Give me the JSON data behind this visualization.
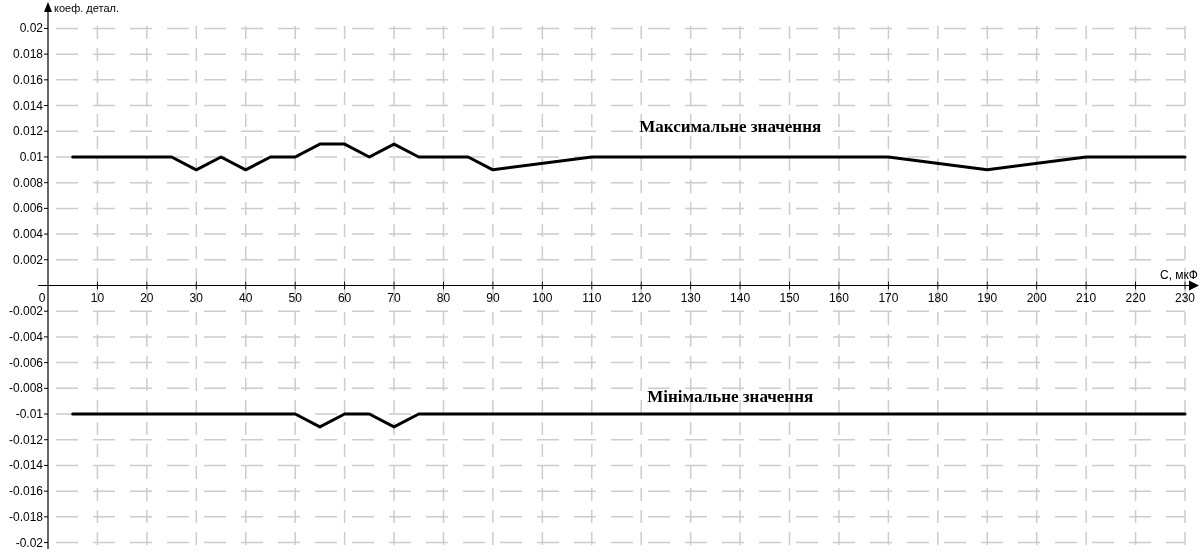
{
  "chart_data": {
    "type": "line",
    "xlabel": "С, мкФ",
    "ylabel": "коеф. детал.",
    "xlim": [
      0,
      230
    ],
    "ylim": [
      -0.0205,
      0.0205
    ],
    "xticks": [
      {
        "value": 0,
        "label": "0"
      },
      10,
      20,
      30,
      40,
      50,
      60,
      70,
      80,
      90,
      100,
      110,
      120,
      130,
      140,
      150,
      160,
      170,
      180,
      190,
      200,
      210,
      220,
      230
    ],
    "yticks": [
      -0.02,
      -0.018,
      -0.016,
      -0.014,
      -0.012,
      -0.01,
      -0.008,
      -0.006,
      -0.004,
      -0.002,
      {
        "value": 0,
        "label": null
      },
      0.002,
      0.004,
      0.006,
      0.008,
      0.01,
      0.012,
      0.014,
      0.016,
      0.018,
      0.02
    ],
    "grid": true,
    "marker": "none",
    "line_style": "solid",
    "series": [
      {
        "name": "Максимальне значення",
        "color": "#000000",
        "x": [
          5,
          10,
          15,
          20,
          25,
          30,
          35,
          40,
          45,
          50,
          55,
          60,
          65,
          70,
          75,
          80,
          85,
          90,
          110,
          170,
          190,
          210,
          230
        ],
        "values": [
          0.01,
          0.01,
          0.01,
          0.01,
          0.01,
          0.009,
          0.01,
          0.009,
          0.01,
          0.01,
          0.011,
          0.011,
          0.01,
          0.011,
          0.01,
          0.01,
          0.01,
          0.009,
          0.01,
          0.01,
          0.009,
          0.01,
          0.01
        ]
      },
      {
        "name": "Мінімальне значення",
        "color": "#000000",
        "x": [
          5,
          50,
          55,
          60,
          65,
          70,
          75,
          230
        ],
        "values": [
          -0.01,
          -0.01,
          -0.011,
          -0.01,
          -0.01,
          -0.011,
          -0.01,
          -0.01
        ]
      }
    ]
  }
}
